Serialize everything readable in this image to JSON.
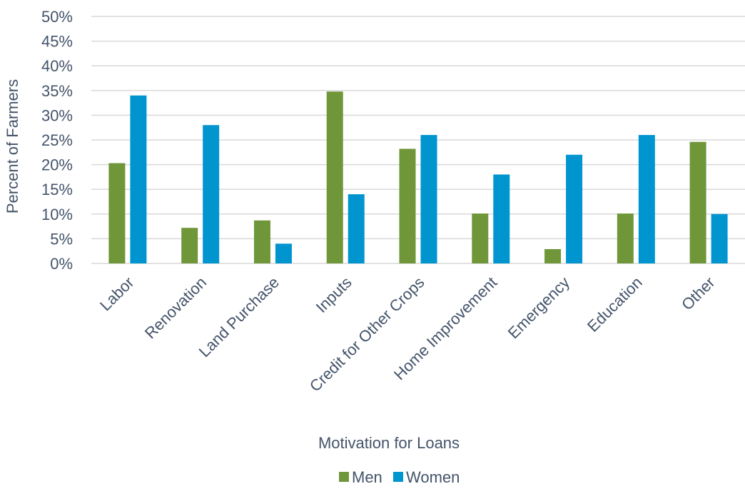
{
  "chart_data": {
    "type": "bar",
    "title": "",
    "xlabel": "Motivation for Loans",
    "ylabel": "Percent of Farmers",
    "ylim": [
      0,
      50
    ],
    "ytick_step": 5,
    "ytick_suffix": "%",
    "grid": true,
    "legend_position": "bottom",
    "categories": [
      "Labor",
      "Renovation",
      "Land Purchase",
      "Inputs",
      "Credit for Other Crops",
      "Home Improvement",
      "Emergency",
      "Education",
      "Other"
    ],
    "series": [
      {
        "name": "Men",
        "color": "#70963a",
        "values": [
          20.3,
          7.2,
          8.7,
          34.8,
          23.2,
          10.1,
          2.9,
          10.1,
          24.6
        ]
      },
      {
        "name": "Women",
        "color": "#0095cf",
        "values": [
          34,
          28,
          4,
          14,
          26,
          18,
          22,
          26,
          10
        ]
      }
    ]
  }
}
